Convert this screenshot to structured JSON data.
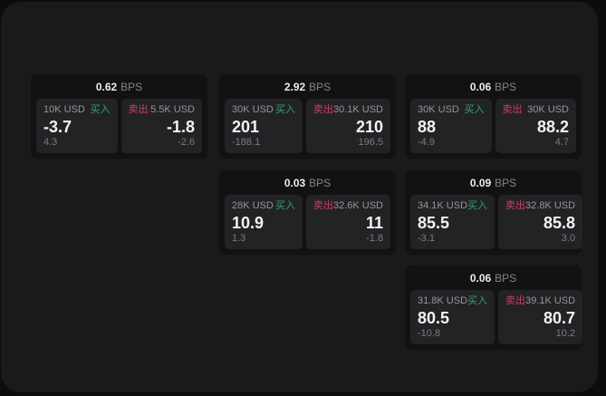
{
  "colors": {
    "buy_green": "#2ca46a",
    "sell_red": "#cb3f63"
  },
  "labels": {
    "bps": "BPS",
    "buy": "买入",
    "sell": "卖出"
  },
  "cards": [
    {
      "bps": "0.62",
      "buy_amount": "10K USD",
      "buy_value": "-3.7",
      "buy_delta": "4.3",
      "sell_amount": "5.5K USD",
      "sell_value": "-1.8",
      "sell_delta": "-2.6"
    },
    {
      "bps": "2.92",
      "buy_amount": "30K USD",
      "buy_value": "201",
      "buy_delta": "-188.1",
      "sell_amount": "30.1K USD",
      "sell_value": "210",
      "sell_delta": "196.5"
    },
    {
      "bps": "0.06",
      "buy_amount": "30K USD",
      "buy_value": "88",
      "buy_delta": "-4.9",
      "sell_amount": "30K USD",
      "sell_value": "88.2",
      "sell_delta": "4.7"
    },
    {
      "bps": "0.03",
      "buy_amount": "28K USD",
      "buy_value": "10.9",
      "buy_delta": "1.3",
      "sell_amount": "32.6K USD",
      "sell_value": "11",
      "sell_delta": "-1.8"
    },
    {
      "bps": "0.09",
      "buy_amount": "34.1K USD",
      "buy_value": "85.5",
      "buy_delta": "-3.1",
      "sell_amount": "32.8K USD",
      "sell_value": "85.8",
      "sell_delta": "3.0"
    },
    {
      "bps": "0.06",
      "buy_amount": "31.8K USD",
      "buy_value": "80.5",
      "buy_delta": "-10.8",
      "sell_amount": "39.1K USD",
      "sell_value": "80.7",
      "sell_delta": "10.2"
    }
  ]
}
